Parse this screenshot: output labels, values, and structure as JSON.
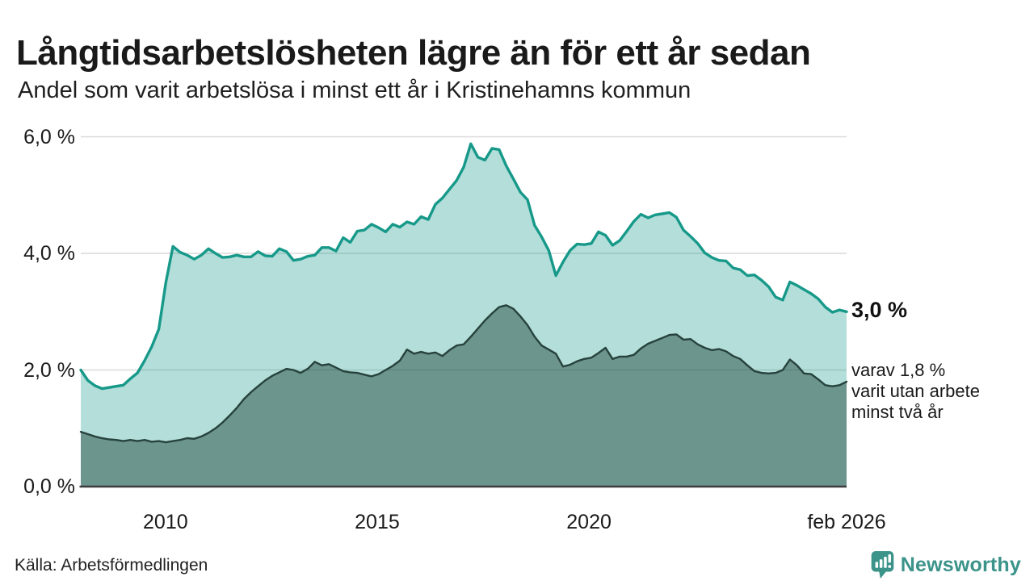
{
  "header": {
    "title": "Långtidsarbetslösheten lägre än för ett år sedan",
    "subtitle": "Andel som varit arbetslösa i minst ett år i Kristinehamns kommun"
  },
  "chart_data": {
    "type": "area",
    "title": "Långtidsarbetslösheten lägre än för ett år sedan",
    "subtitle": "Andel som varit arbetslösa i minst ett år i Kristinehamns kommun",
    "unit": "%",
    "ylim": [
      0,
      6
    ],
    "grid": true,
    "x_domain_years": [
      2008.0,
      2026.083
    ],
    "points_start": "2008-02",
    "points_end": "2026-02",
    "interval_months": 2,
    "y_ticks": [
      {
        "value": 6,
        "label": "6,0 %"
      },
      {
        "value": 4,
        "label": "4,0 %"
      },
      {
        "value": 2,
        "label": "2,0 %"
      },
      {
        "value": 0,
        "label": "0,0 %"
      }
    ],
    "x_ticks": [
      {
        "year": 2010.0,
        "label": "2010"
      },
      {
        "year": 2015.0,
        "label": "2015"
      },
      {
        "year": 2020.0,
        "label": "2020"
      },
      {
        "year": 2026.083,
        "label": "feb 2026"
      }
    ],
    "series": [
      {
        "name": "Andel arbetslösa minst ett år",
        "end_value_label": "3,0 %",
        "values": [
          2.0,
          1.82,
          1.73,
          1.68,
          1.7,
          1.72,
          1.74,
          1.85,
          1.95,
          2.16,
          2.4,
          2.7,
          3.5,
          4.12,
          4.02,
          3.97,
          3.9,
          3.97,
          4.08,
          4.0,
          3.93,
          3.94,
          3.97,
          3.94,
          3.94,
          4.03,
          3.96,
          3.95,
          4.08,
          4.03,
          3.88,
          3.9,
          3.95,
          3.97,
          4.1,
          4.1,
          4.04,
          4.27,
          4.19,
          4.38,
          4.4,
          4.5,
          4.44,
          4.37,
          4.5,
          4.45,
          4.54,
          4.5,
          4.63,
          4.58,
          4.84,
          4.95,
          5.1,
          5.25,
          5.48,
          5.88,
          5.65,
          5.6,
          5.8,
          5.78,
          5.5,
          5.28,
          5.05,
          4.92,
          4.48,
          4.28,
          4.05,
          3.62,
          3.85,
          4.05,
          4.16,
          4.15,
          4.17,
          4.37,
          4.31,
          4.14,
          4.22,
          4.38,
          4.55,
          4.67,
          4.61,
          4.66,
          4.68,
          4.7,
          4.62,
          4.4,
          4.29,
          4.17,
          4.01,
          3.93,
          3.88,
          3.87,
          3.75,
          3.72,
          3.62,
          3.63,
          3.54,
          3.43,
          3.25,
          3.2,
          3.51,
          3.45,
          3.38,
          3.31,
          3.22,
          3.08,
          2.99,
          3.03,
          3.0
        ]
      },
      {
        "name": "Andel arbetslösa minst två år",
        "end_value_label": "1,8 %",
        "values": [
          0.94,
          0.9,
          0.86,
          0.83,
          0.81,
          0.8,
          0.78,
          0.8,
          0.78,
          0.8,
          0.77,
          0.78,
          0.76,
          0.78,
          0.8,
          0.83,
          0.82,
          0.86,
          0.92,
          1.0,
          1.1,
          1.22,
          1.35,
          1.5,
          1.62,
          1.72,
          1.82,
          1.9,
          1.96,
          2.02,
          2.0,
          1.95,
          2.02,
          2.14,
          2.08,
          2.1,
          2.04,
          1.98,
          1.96,
          1.95,
          1.92,
          1.89,
          1.93,
          2.0,
          2.07,
          2.16,
          2.35,
          2.28,
          2.31,
          2.28,
          2.3,
          2.24,
          2.34,
          2.42,
          2.44,
          2.57,
          2.71,
          2.85,
          2.97,
          3.08,
          3.11,
          3.05,
          2.92,
          2.77,
          2.57,
          2.42,
          2.35,
          2.28,
          2.06,
          2.09,
          2.15,
          2.19,
          2.21,
          2.29,
          2.38,
          2.19,
          2.23,
          2.23,
          2.26,
          2.37,
          2.45,
          2.5,
          2.55,
          2.6,
          2.61,
          2.52,
          2.53,
          2.44,
          2.38,
          2.34,
          2.36,
          2.32,
          2.24,
          2.19,
          2.08,
          1.98,
          1.95,
          1.94,
          1.95,
          2.0,
          2.18,
          2.08,
          1.94,
          1.93,
          1.84,
          1.74,
          1.72,
          1.74,
          1.8
        ]
      }
    ],
    "annotations": {
      "end_value": "3,0 %",
      "end_note": "varav 1,8 %\nvarit utan arbete\nminst två år"
    },
    "legend_position": "none"
  },
  "footer": {
    "source": "Källa: Arbetsförmedlingen",
    "brand": "Newsworthy"
  },
  "colors": {
    "accent_line": "#17998a",
    "dark_line": "#27423c",
    "fill_light": "rgba(23,153,138,0.32)",
    "fill_dark": "rgba(20,60,52,0.45)",
    "grid": "#d9d9d9",
    "baseline": "#3d3d3d",
    "text": "#1a1a1a",
    "brand_teal": "#3b938a"
  }
}
